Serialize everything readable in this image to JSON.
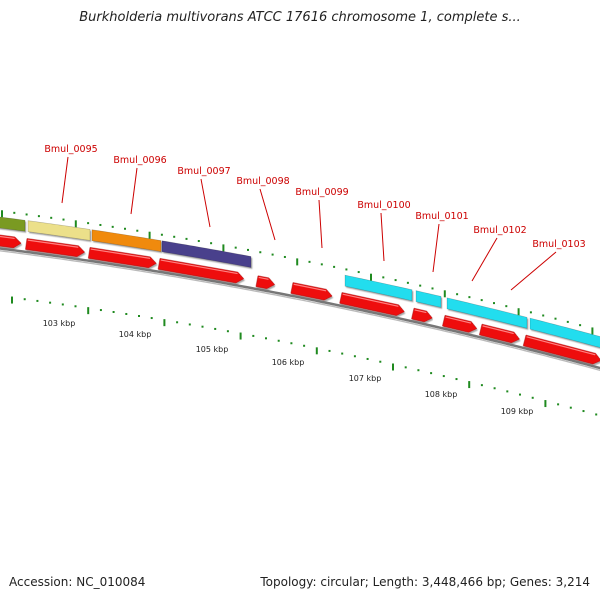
{
  "title": "Burkholderia multivorans ATCC 17616 chromosome 1, complete s...",
  "footer": {
    "accession": "Accession: NC_010084",
    "stats": "Topology: circular; Length: 3,448,466 bp; Genes: 3,214"
  },
  "colors": {
    "backbone": "#888888",
    "tick": "#1f8a1f",
    "cds": "#ee1111",
    "label": "#cc0000",
    "olive": "#7a9a22",
    "khaki": "#ece08a",
    "orange": "#f08a10",
    "indigo": "#4a3f8c",
    "cyan": "#22ddee"
  },
  "gene_labels": [
    {
      "name": "Bmul_0095"
    },
    {
      "name": "Bmul_0096"
    },
    {
      "name": "Bmul_0097"
    },
    {
      "name": "Bmul_0098"
    },
    {
      "name": "Bmul_0099"
    },
    {
      "name": "Bmul_0100"
    },
    {
      "name": "Bmul_0101"
    },
    {
      "name": "Bmul_0102"
    },
    {
      "name": "Bmul_0103"
    }
  ],
  "kbp_ticks": [
    "103 kbp",
    "104 kbp",
    "105 kbp",
    "106 kbp",
    "107 kbp",
    "108 kbp",
    "109 kbp"
  ]
}
